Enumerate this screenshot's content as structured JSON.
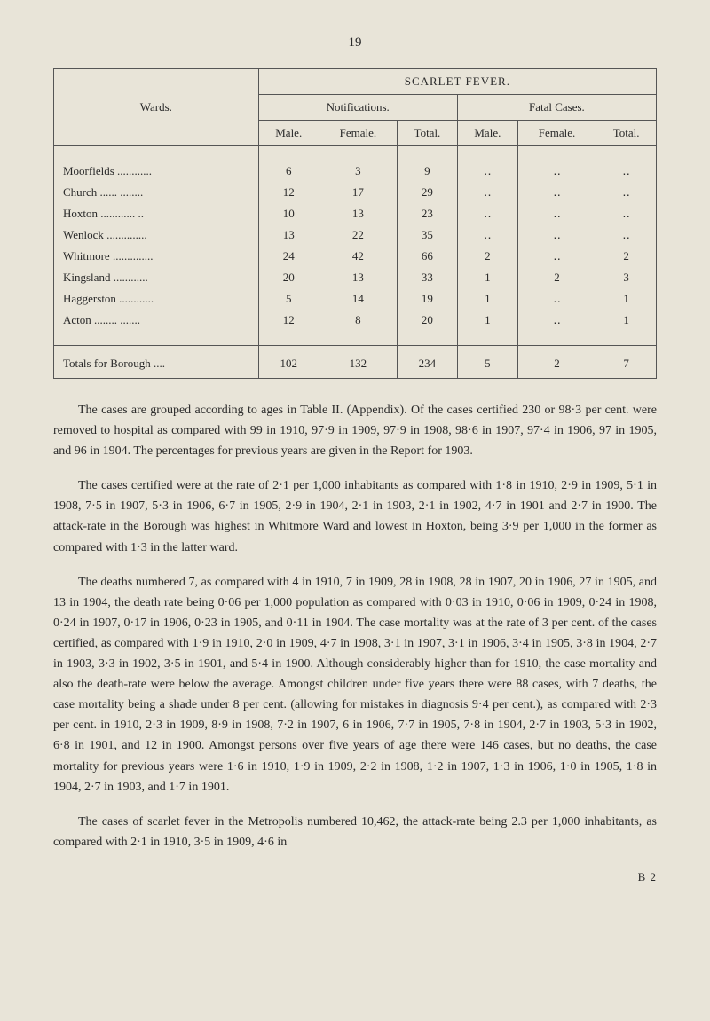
{
  "page_number": "19",
  "table": {
    "type": "table",
    "border_color": "#555",
    "background_color": "#e8e4d8",
    "font_size": 13,
    "main_header": "SCARLET FEVER.",
    "row_header": "Wards.",
    "group_headers": [
      "Notifications.",
      "Fatal Cases."
    ],
    "sub_headers": [
      "Male.",
      "Female.",
      "Total.",
      "Male.",
      "Female.",
      "Total."
    ],
    "rows": [
      {
        "label": "Moorfields",
        "dots": "............",
        "cells": [
          "6",
          "3",
          "9",
          "‥",
          "‥",
          "‥"
        ]
      },
      {
        "label": "Church",
        "dots": "......  ........",
        "cells": [
          "12",
          "17",
          "29",
          "‥",
          "‥",
          "‥"
        ]
      },
      {
        "label": "Hoxton",
        "dots": "............  ..",
        "cells": [
          "10",
          "13",
          "23",
          "‥",
          "‥",
          "‥"
        ]
      },
      {
        "label": "Wenlock",
        "dots": "..............",
        "cells": [
          "13",
          "22",
          "35",
          "‥",
          "‥",
          "‥"
        ]
      },
      {
        "label": "Whitmore",
        "dots": "..............",
        "cells": [
          "24",
          "42",
          "66",
          "2",
          "‥",
          "2"
        ]
      },
      {
        "label": "Kingsland",
        "dots": "............",
        "cells": [
          "20",
          "13",
          "33",
          "1",
          "2",
          "3"
        ]
      },
      {
        "label": "Haggerston",
        "dots": "............",
        "cells": [
          "5",
          "14",
          "19",
          "1",
          "‥",
          "1"
        ]
      },
      {
        "label": "Acton",
        "dots": "........  .......",
        "cells": [
          "12",
          "8",
          "20",
          "1",
          "‥",
          "1"
        ]
      }
    ],
    "totals": {
      "label": "Totals for Borough ....",
      "cells": [
        "102",
        "132",
        "234",
        "5",
        "2",
        "7"
      ]
    }
  },
  "paragraphs": [
    "The cases are grouped according to ages in Table II. (Appendix). Of the cases certified 230 or 98·3 per cent. were removed to hospital as compared with 99 in 1910, 97·9 in 1909, 97·9 in 1908, 98·6 in 1907, 97·4 in 1906, 97 in 1905, and 96 in 1904. The percentages for previous years are given in the Report for 1903.",
    "The cases certified were at the rate of 2·1 per 1,000 inhabitants as compared with 1·8 in 1910, 2·9 in 1909, 5·1 in 1908, 7·5 in 1907, 5·3 in 1906, 6·7 in 1905, 2·9 in 1904, 2·1 in 1903, 2·1 in 1902, 4·7 in 1901 and 2·7 in 1900. The attack-rate in the Borough was highest in Whitmore Ward and lowest in Hoxton, being 3·9 per 1,000 in the former as compared with 1·3 in the latter ward.",
    "The deaths numbered 7, as compared with 4 in 1910, 7 in 1909, 28 in 1908, 28 in 1907, 20 in 1906, 27 in 1905, and 13 in 1904, the death rate being 0·06 per 1,000 population as compared with 0·03 in 1910, 0·06 in 1909, 0·24 in 1908, 0·24 in 1907, 0·17 in 1906, 0·23 in 1905, and 0·11 in 1904. The case mortality was at the rate of 3 per cent. of the cases certified, as compared with 1·9 in 1910, 2·0 in 1909, 4·7 in 1908, 3·1 in 1907, 3·1 in 1906, 3·4 in 1905, 3·8 in 1904, 2·7 in 1903, 3·3 in 1902, 3·5 in 1901, and 5·4 in 1900. Although considerably higher than for 1910, the case mortality and also the death-rate were below the average. Amongst children under five years there were 88 cases, with 7 deaths, the case mortality being a shade under 8 per cent. (allowing for mistakes in diagnosis 9·4 per cent.), as compared with 2·3 per cent. in 1910, 2·3 in 1909, 8·9 in 1908, 7·2 in 1907, 6 in 1906, 7·7 in 1905, 7·8 in 1904, 2·7 in 1903, 5·3 in 1902, 6·8 in 1901, and 12 in 1900. Amongst persons over five years of age there were 146 cases, but no deaths, the case mortality for previous years were 1·6 in 1910, 1·9 in 1909, 2·2 in 1908, 1·2 in 1907, 1·3 in 1906, 1·0 in 1905, 1·8 in 1904, 2·7 in 1903, and 1·7 in 1901.",
    "The cases of scarlet fever in the Metropolis numbered 10,462, the attack-rate being 2.3 per 1,000 inhabitants, as compared with 2·1 in 1910, 3·5 in 1909, 4·6 in"
  ],
  "footer": "B 2"
}
